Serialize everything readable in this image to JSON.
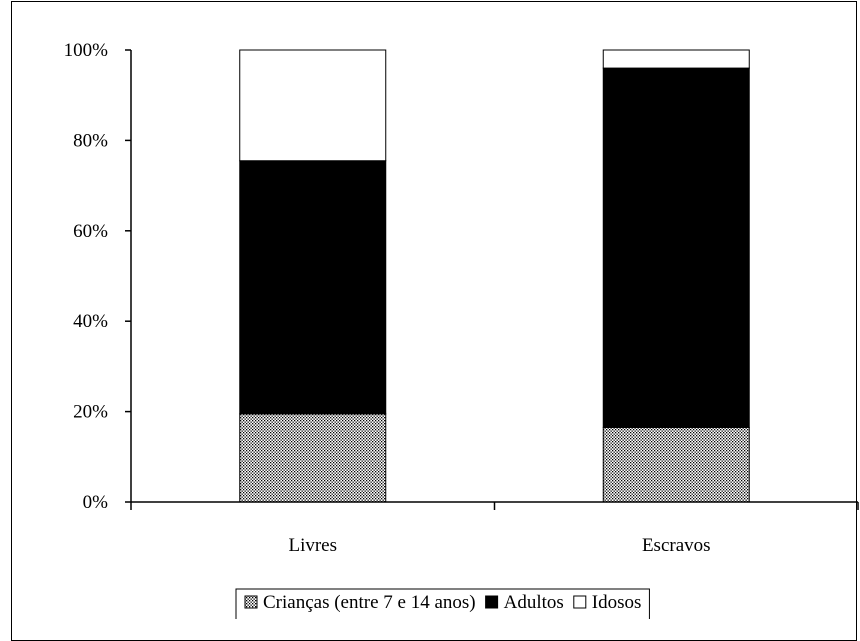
{
  "chart_data": {
    "type": "bar",
    "stacked": true,
    "percent": true,
    "categories": [
      "Livres",
      "Escravos"
    ],
    "series": [
      {
        "name": "Crianças (entre 7 e 14 anos)",
        "values": [
          19.5,
          16.5
        ],
        "pattern": "dotted"
      },
      {
        "name": "Adultos",
        "values": [
          56,
          79.5
        ],
        "color": "#000000"
      },
      {
        "name": "Idosos",
        "values": [
          24.5,
          4
        ],
        "color": "#ffffff"
      }
    ],
    "y_ticks": [
      "0%",
      "20%",
      "40%",
      "60%",
      "80%",
      "100%"
    ],
    "ylim": [
      0,
      100
    ],
    "grid": false,
    "legend": "bottom"
  }
}
